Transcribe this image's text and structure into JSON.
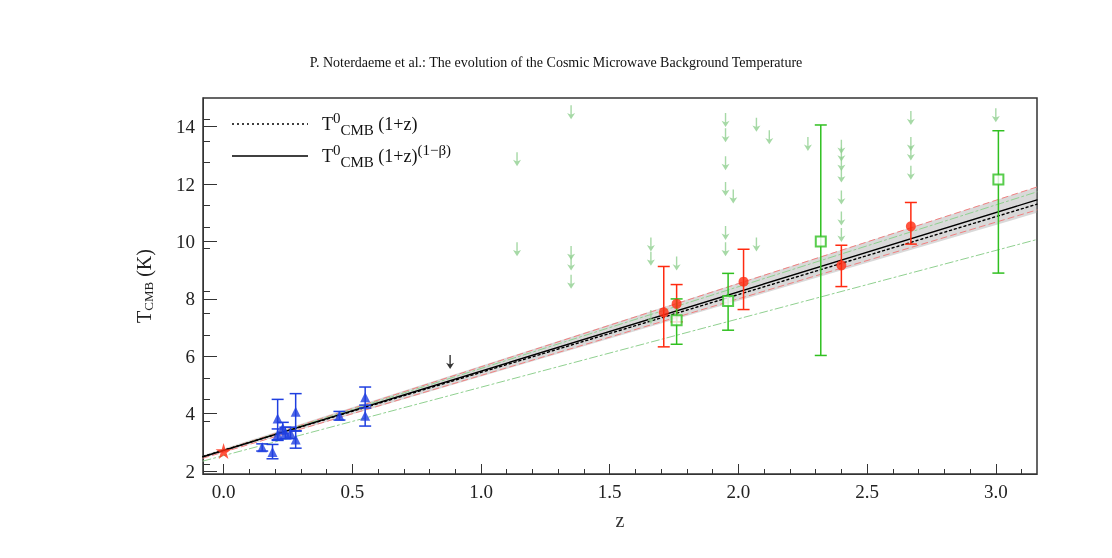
{
  "chart_data": {
    "type": "scatter",
    "title": "P. Noterdaeme et al.: The evolution of the Cosmic Microwave Background Temperature",
    "xlabel": "z",
    "ylabel": "T$_{CMB}$ (K)",
    "xlim": [
      -0.08,
      3.16
    ],
    "ylim": [
      1.9,
      15
    ],
    "xticks": [
      {
        "value": 0,
        "label": "0.0"
      },
      {
        "value": 0.5,
        "label": "0.5"
      },
      {
        "value": 1,
        "label": "1.0"
      },
      {
        "value": 1.5,
        "label": "1.5"
      },
      {
        "value": 2,
        "label": "2.0"
      },
      {
        "value": 2.5,
        "label": "2.5"
      },
      {
        "value": 3,
        "label": "3.0"
      }
    ],
    "yticks": [
      2,
      4,
      6,
      8,
      10,
      12,
      14
    ],
    "legend": "top left",
    "series": [
      {
        "type": "line",
        "x": [
          -0.08,
          3.16
        ],
        "values": [
          2.5,
          11.9
        ],
        "color": "#f08080",
        "line_style": "dashed"
      },
      {
        "type": "line",
        "x": [
          -0.08,
          3.16
        ],
        "values": [
          2.45,
          11.1
        ],
        "color": "#f08080",
        "line_style": "dashed"
      },
      {
        "type": "line",
        "x": [
          -0.08,
          3.16
        ],
        "values": [
          2.5,
          11.73
        ],
        "color": "#90d090",
        "line_style": "dashdot"
      },
      {
        "type": "line",
        "x": [
          -0.08,
          3.16
        ],
        "values": [
          2.35,
          10.07
        ],
        "color": "#90d090",
        "line_style": "dashdot"
      },
      {
        "type": "line",
        "name": "T$^{0}$$_{CMB}$ (1+z)",
        "x": [
          -0.08,
          3.16
        ],
        "values": [
          2.51,
          11.3
        ],
        "color": "#000000",
        "line_style": "dotted"
      },
      {
        "type": "line",
        "name": "T$^{0}$$_{CMB}$ (1+z)$^{(1−β)}$",
        "x": [
          -0.08,
          3.16
        ],
        "values": [
          2.5,
          11.45
        ],
        "lower": [
          2.45,
          11.0
        ],
        "upper": [
          2.55,
          11.9
        ],
        "color": "#000000",
        "line_style": "solid"
      },
      {
        "x": [
          1.14,
          1.14,
          1.35,
          1.35,
          1.35,
          1.35,
          1.66,
          1.66,
          1.66,
          1.76,
          1.95,
          1.95,
          1.95,
          1.95,
          1.98,
          1.95,
          1.95,
          2.07,
          2.12,
          2.07,
          2.27,
          2.4,
          2.4,
          2.4,
          2.4,
          2.4,
          2.4,
          2.4,
          2.67,
          2.67,
          2.67,
          2.67,
          3.0
        ],
        "values": [
          12.87,
          9.73,
          14.5,
          9.6,
          9.23,
          8.6,
          9.9,
          9.4,
          7.37,
          9.23,
          14.23,
          13.7,
          12.73,
          11.83,
          11.57,
          10.3,
          9.73,
          14.07,
          13.63,
          9.9,
          13.4,
          13.3,
          13.03,
          12.7,
          12.3,
          11.53,
          10.8,
          10.23,
          14.3,
          13.4,
          13.07,
          12.4,
          14.4
        ],
        "color": "#90d090"
      },
      {
        "x": [
          0.88
        ],
        "values": [
          5.8
        ],
        "color": "#000000"
      },
      {
        "x": [
          0.15,
          0.19,
          0.21,
          0.21,
          0.23,
          0.24,
          0.26,
          0.28,
          0.28,
          0.45,
          0.55,
          0.55
        ],
        "values": [
          2.83,
          2.67,
          3.27,
          3.83,
          3.5,
          3.33,
          3.33,
          4.07,
          3.1,
          3.93,
          4.57,
          3.93
        ],
        "errors": [
          [
            2.7,
            2.95
          ],
          [
            2.43,
            2.93
          ],
          [
            3.07,
            3.47
          ],
          [
            3.1,
            4.5
          ],
          [
            3.3,
            3.7
          ],
          [
            3.13,
            3.53
          ],
          [
            3.13,
            3.53
          ],
          [
            3.4,
            4.7
          ],
          [
            2.8,
            3.4
          ],
          [
            3.78,
            4.08
          ],
          [
            4.2,
            4.93
          ],
          [
            3.57,
            4.3
          ]
        ],
        "color": "#1f3fe0",
        "marker": "triangle"
      },
      {
        "x": [
          1.71,
          1.76,
          2.02,
          2.4,
          2.67
        ],
        "values": [
          7.53,
          7.83,
          8.6,
          9.17,
          10.53
        ],
        "errors": [
          [
            6.33,
            9.13
          ],
          [
            7.2,
            8.5
          ],
          [
            7.63,
            9.73
          ],
          [
            8.43,
            9.87
          ],
          [
            9.91,
            11.36
          ]
        ],
        "color": "#ff2a10",
        "marker": "circle"
      },
      {
        "x": [
          1.76,
          1.96,
          2.32,
          3.01
        ],
        "values": [
          7.26,
          7.93,
          10.0,
          12.16
        ],
        "errors": [
          [
            6.42,
            8.0
          ],
          [
            6.91,
            8.89
          ],
          [
            6.03,
            14.06
          ],
          [
            8.9,
            13.86
          ]
        ],
        "color": "#30c020",
        "marker": "square"
      },
      {
        "x": [
          0
        ],
        "values": [
          2.7
        ],
        "color": "#ff2a10",
        "marker": "star"
      }
    ]
  }
}
